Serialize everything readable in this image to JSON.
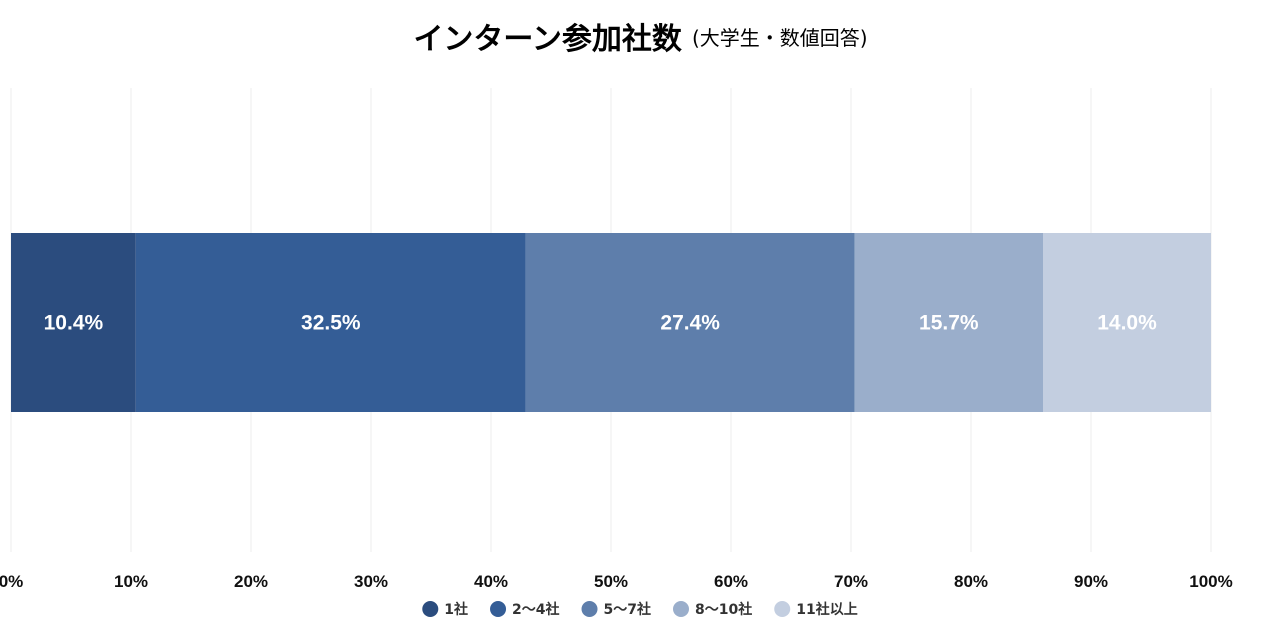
{
  "chart_data": {
    "type": "bar",
    "orientation": "horizontal",
    "stacked": true,
    "title": "インターン参加社数",
    "subtitle": "(大学生・数値回答)",
    "xlim": [
      0,
      100
    ],
    "x_ticks": [
      0,
      10,
      20,
      30,
      40,
      50,
      60,
      70,
      80,
      90,
      100
    ],
    "x_tick_labels": [
      "0%",
      "10%",
      "20%",
      "30%",
      "40%",
      "50%",
      "60%",
      "70%",
      "80%",
      "90%",
      "100%"
    ],
    "grid": true,
    "legend_position": "bottom",
    "series": [
      {
        "name": "1社",
        "value": 10.4,
        "label": "10.4%",
        "color": "#2b4c7e"
      },
      {
        "name": "2〜4社",
        "value": 32.5,
        "label": "32.5%",
        "color": "#345d96"
      },
      {
        "name": "5〜7社",
        "value": 27.4,
        "label": "27.4%",
        "color": "#5e7eab"
      },
      {
        "name": "8〜10社",
        "value": 15.7,
        "label": "15.7%",
        "color": "#9aaecb"
      },
      {
        "name": "11社以上",
        "value": 14.0,
        "label": "14.0%",
        "color": "#c3cee0"
      }
    ]
  }
}
